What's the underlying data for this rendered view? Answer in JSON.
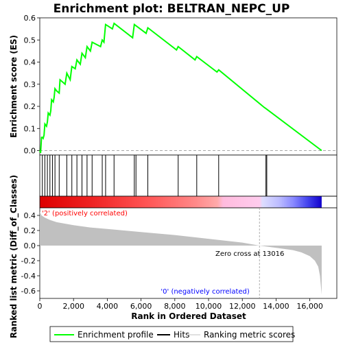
{
  "chart_data": {
    "type": "line",
    "title": "Enrichment plot: BELTRAN_NEPC_UP",
    "colors": {
      "enrichment": "#00ff00",
      "hits": "#000000",
      "metric_fill": "#c0c0c0",
      "positive_label": "#ff0000",
      "negative_label": "#0000ff",
      "zero_cross_line": "#999999"
    },
    "es_panel": {
      "ylabel": "Enrichment score (ES)",
      "ylim": [
        -0.02,
        0.6
      ],
      "yticks": [
        "0.0",
        "0.1",
        "0.2",
        "0.3",
        "0.4",
        "0.5",
        "0.6"
      ],
      "ytick_values": [
        0.0,
        0.1,
        0.2,
        0.3,
        0.4,
        0.5,
        0.6
      ],
      "series_name": "Enrichment profile",
      "x": [
        0,
        50,
        100,
        150,
        200,
        250,
        300,
        400,
        450,
        500,
        600,
        650,
        700,
        800,
        850,
        900,
        1000,
        1150,
        1200,
        1500,
        1600,
        1800,
        1900,
        2100,
        2200,
        2400,
        2500,
        2700,
        2800,
        3000,
        3100,
        3600,
        3700,
        3800,
        3900,
        4300,
        4400,
        5500,
        5600,
        6300,
        6400,
        8100,
        8200,
        9200,
        9300,
        10500,
        10600,
        13300,
        13400,
        16700
      ],
      "y": [
        0.0,
        -0.01,
        0.06,
        0.06,
        0.055,
        0.07,
        0.12,
        0.11,
        0.13,
        0.17,
        0.16,
        0.18,
        0.23,
        0.22,
        0.24,
        0.28,
        0.27,
        0.26,
        0.32,
        0.3,
        0.35,
        0.32,
        0.38,
        0.37,
        0.41,
        0.39,
        0.44,
        0.42,
        0.47,
        0.45,
        0.49,
        0.47,
        0.5,
        0.49,
        0.57,
        0.55,
        0.575,
        0.51,
        0.57,
        0.53,
        0.555,
        0.455,
        0.47,
        0.41,
        0.425,
        0.355,
        0.365,
        0.195,
        0.19,
        0.0
      ]
    },
    "hits_panel": {
      "hit_positions": [
        150,
        300,
        450,
        600,
        750,
        900,
        1150,
        1600,
        1900,
        2200,
        2500,
        2800,
        3100,
        3700,
        3900,
        4400,
        5600,
        5700,
        6400,
        8200,
        9300,
        10600,
        13400,
        13450
      ]
    },
    "ranked_panel": {
      "ylabel": "Ranked list metric (Diff_of_Classes)",
      "xlabel": "Rank in Ordered Dataset",
      "ylim": [
        -0.7,
        0.5
      ],
      "yticks": [
        "0.4",
        "0.2",
        "0.0",
        "-0.2",
        "-0.4",
        "-0.6"
      ],
      "ytick_values": [
        0.4,
        0.2,
        0.0,
        -0.2,
        -0.4,
        -0.6
      ],
      "xticks": [
        "0",
        "2,000",
        "4,000",
        "6,000",
        "8,000",
        "10,000",
        "12,000",
        "14,000",
        "16,000"
      ],
      "xtick_values": [
        0,
        2000,
        4000,
        6000,
        8000,
        10000,
        12000,
        14000,
        16000
      ],
      "xlim": [
        0,
        17600
      ],
      "metric_x": [
        0,
        100,
        300,
        600,
        1000,
        2000,
        3000,
        4000,
        6000,
        8000,
        10000,
        12000,
        13016,
        14000,
        15000,
        15500,
        16000,
        16300,
        16500,
        16600,
        16700
      ],
      "metric_y": [
        0.45,
        0.4,
        0.37,
        0.34,
        0.31,
        0.27,
        0.24,
        0.22,
        0.18,
        0.14,
        0.09,
        0.04,
        0.0,
        -0.03,
        -0.06,
        -0.09,
        -0.14,
        -0.2,
        -0.28,
        -0.4,
        -0.65
      ],
      "zero_cross_text": "Zero cross at 13016",
      "zero_cross_x": 13016,
      "positive_text": "'2' (positively correlated)",
      "negative_text": "'0' (negatively correlated)",
      "n_genes": 16700
    },
    "legend": {
      "placement": "bottom",
      "items": [
        "Enrichment profile",
        "Hits",
        "Ranking metric scores"
      ]
    }
  }
}
